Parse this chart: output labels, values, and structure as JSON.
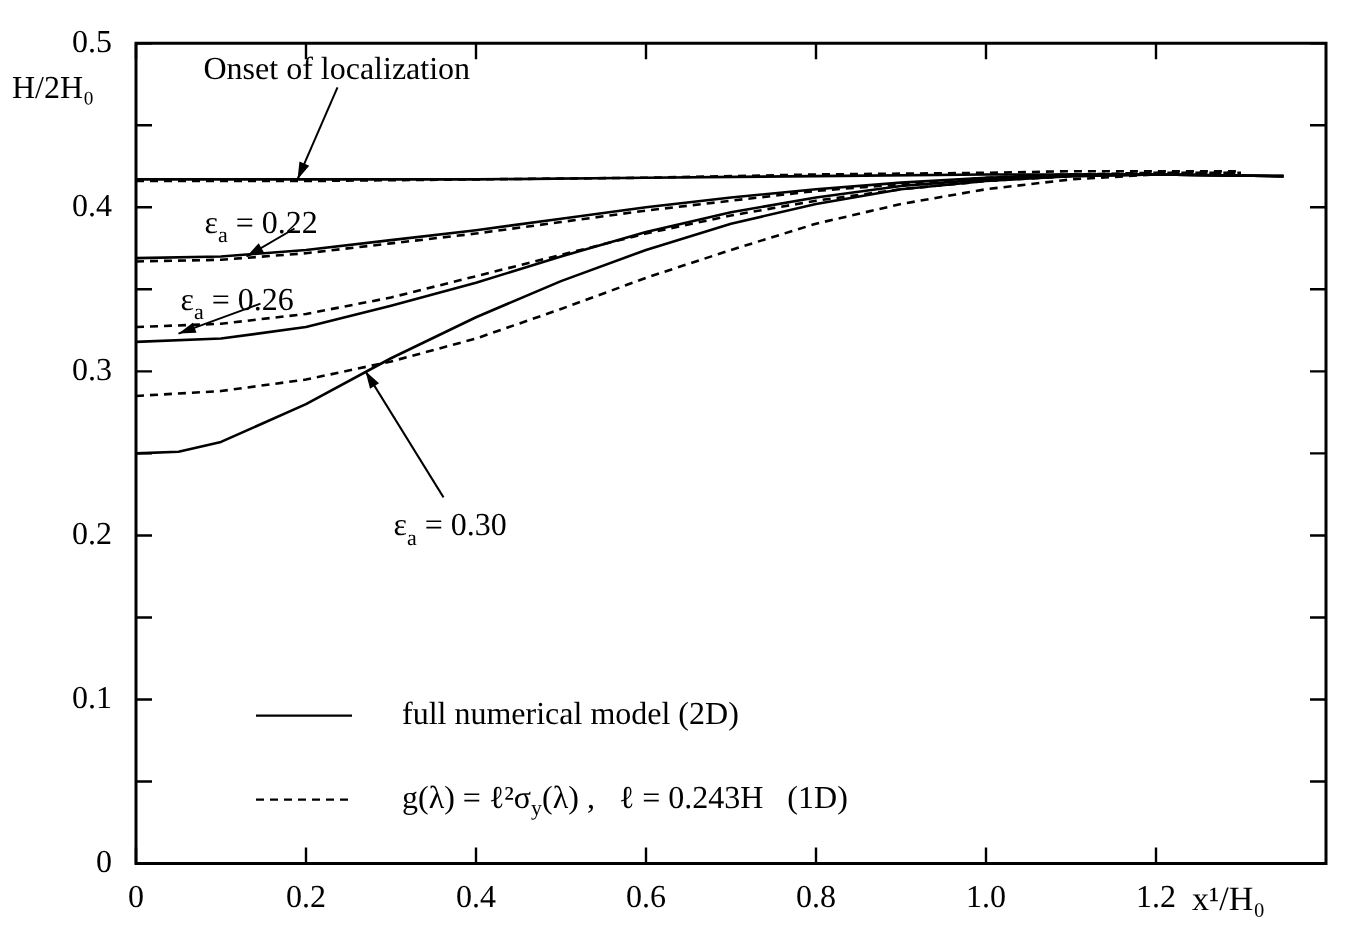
{
  "chart_data": {
    "type": "line",
    "xlabel": "x¹/H₀",
    "ylabel": "H/2H₀",
    "xlim": [
      0,
      1.4
    ],
    "xticks": [
      0,
      0.2,
      0.4,
      0.6,
      0.8,
      {
        "value": 1,
        "label": "1.0"
      },
      1.2
    ],
    "ylim": [
      0,
      0.5
    ],
    "yticks": [
      0,
      {
        "value": 0.05,
        "label": null
      },
      0.1,
      {
        "value": 0.15,
        "label": null
      },
      0.2,
      {
        "value": 0.25,
        "label": null
      },
      0.3,
      {
        "value": 0.35,
        "label": null
      },
      0.4,
      {
        "value": 0.45,
        "label": null
      },
      0.5
    ],
    "grid": false,
    "legend": "bottom left",
    "marker": "none",
    "series": [
      {
        "name": "full numerical model (2D)",
        "color": "#000000",
        "line_style": "solid",
        "x": [
          0,
          0.2,
          0.4,
          0.6,
          0.8,
          1.0,
          1.1,
          1.2,
          1.35
        ],
        "values": [
          0.417,
          0.417,
          0.417,
          0.418,
          0.419,
          0.42,
          0.42,
          0.42,
          0.419
        ]
      },
      {
        "name": "g(λ) = ℓ²σ$_{y}$(λ) ,   ℓ = 0.243H   (1D)",
        "color": "#000000",
        "line_style": "dashed",
        "x": [
          0,
          0.2,
          0.4,
          0.6,
          0.8,
          1.0,
          1.1,
          1.2,
          1.3
        ],
        "values": [
          0.416,
          0.416,
          0.417,
          0.418,
          0.42,
          0.421,
          0.422,
          0.422,
          0.422
        ]
      },
      {
        "color": "#000000",
        "line_style": "solid",
        "x": [
          0,
          0.1,
          0.2,
          0.3,
          0.4,
          0.5,
          0.6,
          0.7,
          0.8,
          0.9,
          1.0,
          1.1,
          1.2,
          1.35
        ],
        "values": [
          0.369,
          0.37,
          0.374,
          0.38,
          0.386,
          0.393,
          0.4,
          0.406,
          0.411,
          0.415,
          0.418,
          0.42,
          0.42,
          0.419
        ]
      },
      {
        "color": "#000000",
        "line_style": "dashed",
        "x": [
          0,
          0.1,
          0.2,
          0.3,
          0.4,
          0.5,
          0.6,
          0.7,
          0.8,
          0.9,
          1.0,
          1.1,
          1.2,
          1.3
        ],
        "values": [
          0.367,
          0.368,
          0.372,
          0.378,
          0.384,
          0.391,
          0.398,
          0.404,
          0.41,
          0.414,
          0.418,
          0.42,
          0.421,
          0.421
        ]
      },
      {
        "color": "#000000",
        "line_style": "solid",
        "x": [
          0,
          0.1,
          0.2,
          0.3,
          0.4,
          0.5,
          0.6,
          0.7,
          0.8,
          0.9,
          1.0,
          1.1,
          1.2,
          1.35
        ],
        "values": [
          0.318,
          0.32,
          0.327,
          0.34,
          0.354,
          0.37,
          0.385,
          0.397,
          0.406,
          0.413,
          0.417,
          0.419,
          0.42,
          0.419
        ]
      },
      {
        "color": "#000000",
        "line_style": "dashed",
        "x": [
          0,
          0.1,
          0.2,
          0.3,
          0.4,
          0.5,
          0.6,
          0.7,
          0.8,
          0.9,
          1.0,
          1.1,
          1.2,
          1.3
        ],
        "values": [
          0.327,
          0.329,
          0.335,
          0.345,
          0.358,
          0.371,
          0.384,
          0.395,
          0.404,
          0.411,
          0.416,
          0.419,
          0.421,
          0.421
        ]
      },
      {
        "color": "#000000",
        "line_style": "solid",
        "x": [
          0,
          0.05,
          0.1,
          0.2,
          0.3,
          0.4,
          0.5,
          0.6,
          0.7,
          0.8,
          0.9,
          1.0,
          1.1,
          1.2,
          1.35
        ],
        "values": [
          0.25,
          0.251,
          0.257,
          0.28,
          0.308,
          0.333,
          0.355,
          0.374,
          0.39,
          0.402,
          0.411,
          0.416,
          0.419,
          0.42,
          0.419
        ]
      },
      {
        "color": "#000000",
        "line_style": "dashed",
        "x": [
          0,
          0.1,
          0.2,
          0.3,
          0.4,
          0.5,
          0.6,
          0.7,
          0.8,
          0.9,
          1.0,
          1.1,
          1.2,
          1.3
        ],
        "values": [
          0.285,
          0.288,
          0.295,
          0.306,
          0.32,
          0.338,
          0.357,
          0.374,
          0.39,
          0.402,
          0.411,
          0.417,
          0.42,
          0.421
        ]
      }
    ],
    "annotations": [
      {
        "text": "Onset of localization",
        "x": 0.19,
        "y": 0.417
      },
      {
        "text": "ε$_{a}$ = 0.22",
        "x": 0.13,
        "y": 0.37
      },
      {
        "text": "ε$_{a}$ = 0.26",
        "x": 0.05,
        "y": 0.323
      },
      {
        "text": "ε$_{a}$ = 0.30",
        "x": 0.27,
        "y": 0.3
      }
    ]
  }
}
